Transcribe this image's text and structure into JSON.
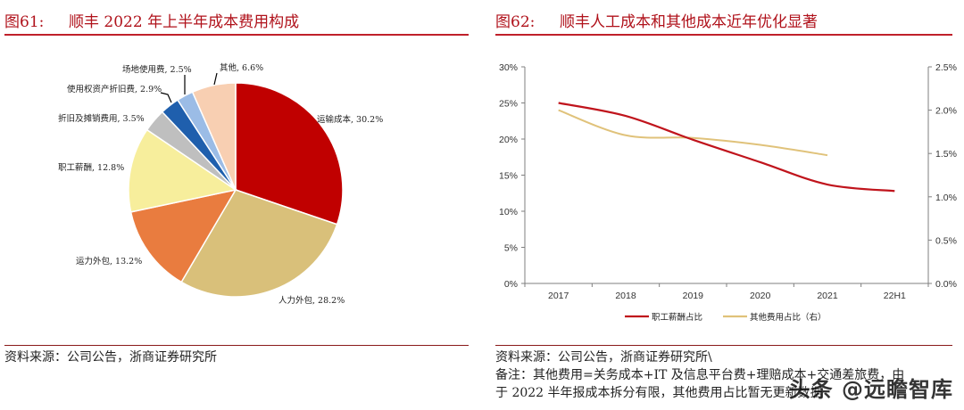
{
  "left_panel": {
    "figure_number": "图61:",
    "figure_title": "顺丰 2022 年上半年成本费用构成",
    "source": "资料来源：公司公告，浙商证券研究所"
  },
  "right_panel": {
    "figure_number": "图62:",
    "figure_title": "顺丰人工成本和其他成本近年优化显著",
    "source": "资料来源：公司公告，浙商证券研究所\\",
    "note_line1": "备注：其他费用=关务成本+IT 及信息平台费+理赔成本+交通差旅费，由",
    "note_line2": "于 2022 半年报成本拆分有限，其他费用占比暂无更新数据"
  },
  "watermark": "头条 @远瞻智库",
  "chart_data": [
    {
      "type": "pie",
      "title": "顺丰 2022 年上半年成本费用构成",
      "categories": [
        "运输成本",
        "人力外包",
        "运力外包",
        "职工薪酬",
        "折旧及摊销费用",
        "使用权资产折旧费",
        "场地使用费",
        "其他"
      ],
      "values": [
        30.2,
        28.2,
        13.2,
        12.8,
        3.5,
        2.9,
        2.5,
        6.6
      ],
      "labels": [
        "运输成本, 30.2%",
        "人力外包, 28.2%",
        "运力外包, 13.2%",
        "职工薪酬, 12.8%",
        "折旧及摊销费用, 3.5%",
        "使用权资产折旧费, 2.9%",
        "场地使用费, 2.5%",
        "其他, 6.6%"
      ],
      "colors": [
        "#c00000",
        "#d9c07a",
        "#e97c3f",
        "#f7ee9c",
        "#bfbfbf",
        "#1f5fad",
        "#9bbce6",
        "#f8cfb2"
      ],
      "unit": "%"
    },
    {
      "type": "line",
      "title": "顺丰人工成本和其他成本近年优化显著",
      "categories": [
        "2017",
        "2018",
        "2019",
        "2020",
        "2021",
        "22H1"
      ],
      "series": [
        {
          "name": "职工薪酬占比",
          "axis": "left",
          "color": "#c0141c",
          "values": [
            25.0,
            23.2,
            19.9,
            16.8,
            13.7,
            12.8
          ]
        },
        {
          "name": "其他费用占比（右）",
          "axis": "right",
          "color": "#e0c27a",
          "values": [
            2.0,
            1.71,
            1.68,
            1.6,
            1.48,
            null
          ]
        }
      ],
      "left_axis": {
        "ylim": [
          0,
          30
        ],
        "ticks": [
          "0%",
          "5%",
          "10%",
          "15%",
          "20%",
          "25%",
          "30%"
        ]
      },
      "right_axis": {
        "ylim": [
          0,
          2.5
        ],
        "ticks": [
          "0.0%",
          "0.5%",
          "1.0%",
          "1.5%",
          "2.0%",
          "2.5%"
        ]
      },
      "xlabel": "",
      "ylabel": "",
      "grid": false,
      "legend_position": "bottom"
    }
  ]
}
